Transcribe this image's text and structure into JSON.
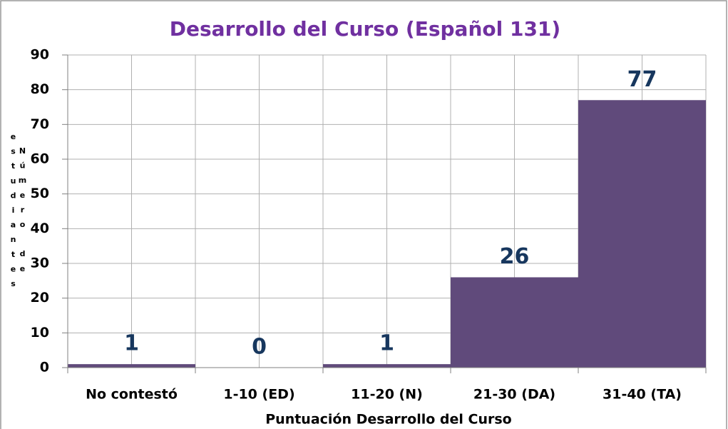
{
  "chart_data": {
    "type": "bar",
    "title": "Desarrollo del Curso (Español 131)",
    "x_label": "Puntuación Desarrollo del Curso",
    "y_label": "Número de estudiantes",
    "categories": [
      "No contestó",
      "1-10 (ED)",
      "11-20 (N)",
      "21-30 (DA)",
      "31-40 (TA)"
    ],
    "values": [
      1,
      0,
      1,
      26,
      77
    ],
    "color": "#604a7b",
    "ylim": [
      0,
      90
    ],
    "yticks": [
      0,
      10,
      20,
      30,
      40,
      50,
      60,
      70,
      80,
      90
    ],
    "grid": true
  }
}
